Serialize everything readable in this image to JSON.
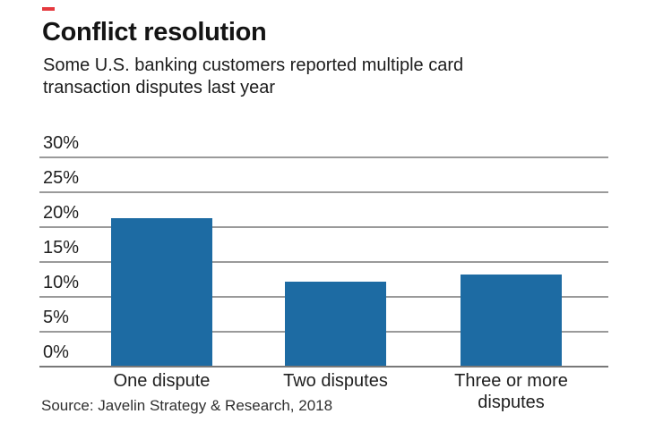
{
  "header": {
    "accent_color": "#e5393e",
    "title": "Conflict resolution",
    "subtitle_lines": [
      "Some U.S. banking customers reported multiple card",
      "transaction disputes last year"
    ]
  },
  "chart_data": {
    "type": "bar",
    "title": "Conflict resolution",
    "subtitle": "Some U.S. banking customers reported multiple card transaction disputes last year",
    "categories": [
      "One dispute",
      "Two disputes",
      "Three or more disputes"
    ],
    "values": [
      21,
      12,
      13
    ],
    "value_unit": "%",
    "ylim": [
      0,
      30
    ],
    "ytick_interval": 5,
    "ytick_labels": [
      "0%",
      "5%",
      "10%",
      "15%",
      "20%",
      "25%",
      "30%"
    ],
    "grid": true,
    "legend": false,
    "bar_color": "#1d6ba3",
    "gridline_color": "#9a9a9a",
    "axis_line_color": "#787878",
    "text_color": "#1f1f1f"
  },
  "footer": {
    "source": "Source: Javelin Strategy & Research, 2018"
  }
}
